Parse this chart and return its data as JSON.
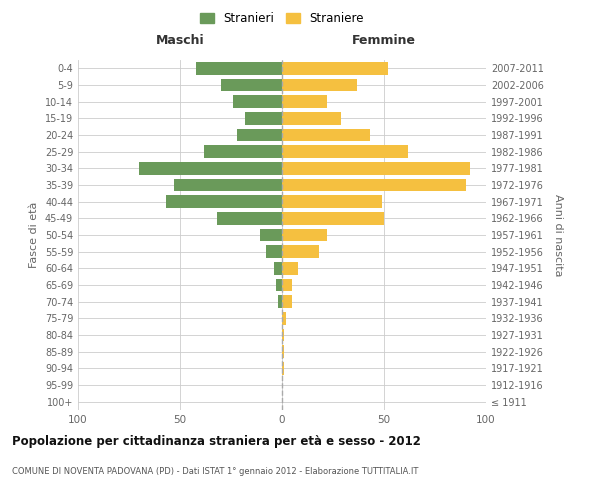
{
  "age_groups": [
    "100+",
    "95-99",
    "90-94",
    "85-89",
    "80-84",
    "75-79",
    "70-74",
    "65-69",
    "60-64",
    "55-59",
    "50-54",
    "45-49",
    "40-44",
    "35-39",
    "30-34",
    "25-29",
    "20-24",
    "15-19",
    "10-14",
    "5-9",
    "0-4"
  ],
  "birth_years": [
    "≤ 1911",
    "1912-1916",
    "1917-1921",
    "1922-1926",
    "1927-1931",
    "1932-1936",
    "1937-1941",
    "1942-1946",
    "1947-1951",
    "1952-1956",
    "1957-1961",
    "1962-1966",
    "1967-1971",
    "1972-1976",
    "1977-1981",
    "1982-1986",
    "1987-1991",
    "1992-1996",
    "1997-2001",
    "2002-2006",
    "2007-2011"
  ],
  "males": [
    0,
    0,
    0,
    0,
    0,
    0,
    2,
    3,
    4,
    8,
    11,
    32,
    57,
    53,
    70,
    38,
    22,
    18,
    24,
    30,
    42
  ],
  "females": [
    0,
    0,
    1,
    1,
    1,
    2,
    5,
    5,
    8,
    18,
    22,
    50,
    49,
    90,
    92,
    62,
    43,
    29,
    22,
    37,
    52
  ],
  "male_color": "#6a9a5a",
  "female_color": "#f5c040",
  "bar_height": 0.75,
  "xlim": 100,
  "title": "Popolazione per cittadinanza straniera per età e sesso - 2012",
  "subtitle": "COMUNE DI NOVENTA PADOVANA (PD) - Dati ISTAT 1° gennaio 2012 - Elaborazione TUTTITALIA.IT",
  "ylabel": "Fasce di età",
  "ylabel_right": "Anni di nascita",
  "legend_male": "Stranieri",
  "legend_female": "Straniere",
  "maschi_label": "Maschi",
  "femmine_label": "Femmine",
  "bg_color": "#ffffff",
  "grid_color": "#cccccc",
  "label_color": "#666666"
}
